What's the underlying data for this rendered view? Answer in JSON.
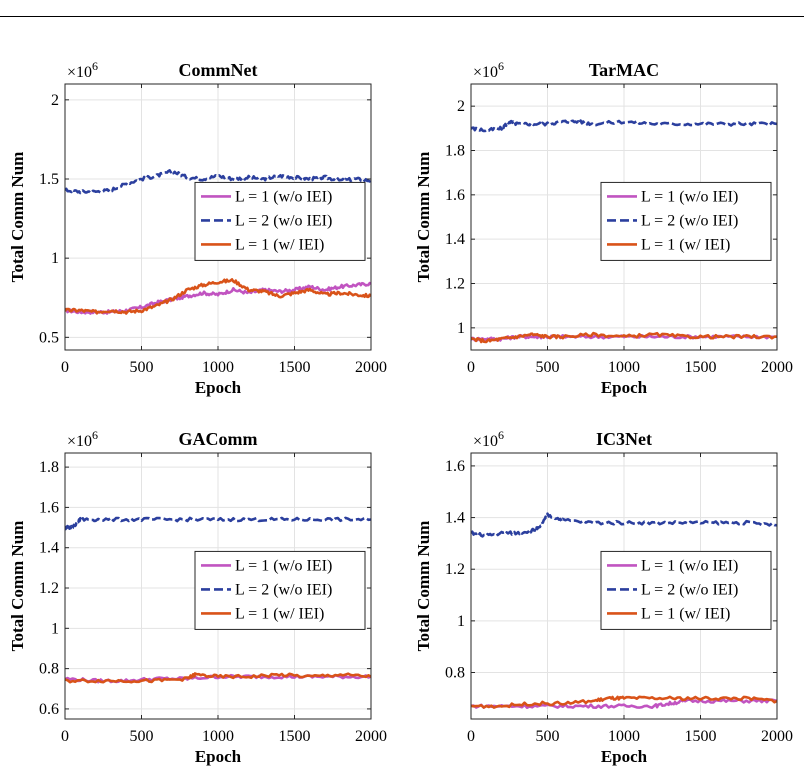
{
  "chart_data": [
    {
      "type": "line",
      "title": "CommNet",
      "xlabel": "Epoch",
      "ylabel": "Total Comm Num",
      "y_multiplier": "×10",
      "y_multiplier_exp": "6",
      "xlim": [
        0,
        2000
      ],
      "ylim": [
        0.42,
        2.1
      ],
      "xticks": [
        0,
        500,
        1000,
        1500,
        2000
      ],
      "yticks": [
        0.5,
        1,
        1.5,
        2
      ],
      "ytick_labels": [
        "0.5",
        "1",
        "1.5",
        "2"
      ],
      "grid": true,
      "legend_position": "right",
      "series": [
        {
          "name": "L = 1 (w/o IEI)",
          "color": "#c154c1",
          "dash": "solid",
          "x": [
            0,
            100,
            200,
            300,
            400,
            500,
            600,
            700,
            800,
            900,
            1000,
            1100,
            1200,
            1300,
            1400,
            1500,
            1600,
            1700,
            1800,
            1900,
            2000
          ],
          "y": [
            0.67,
            0.66,
            0.66,
            0.66,
            0.67,
            0.69,
            0.72,
            0.74,
            0.76,
            0.78,
            0.77,
            0.8,
            0.78,
            0.8,
            0.79,
            0.8,
            0.82,
            0.8,
            0.82,
            0.83,
            0.84
          ]
        },
        {
          "name": "L = 2 (w/o IEI)",
          "color": "#2b3f9e",
          "dash": "dashed",
          "x": [
            0,
            100,
            200,
            300,
            400,
            500,
            600,
            700,
            800,
            900,
            1000,
            1100,
            1200,
            1300,
            1400,
            1500,
            1600,
            1700,
            1800,
            1900,
            2000
          ],
          "y": [
            1.43,
            1.42,
            1.42,
            1.43,
            1.47,
            1.5,
            1.52,
            1.55,
            1.51,
            1.5,
            1.52,
            1.5,
            1.51,
            1.5,
            1.52,
            1.51,
            1.5,
            1.51,
            1.49,
            1.5,
            1.49
          ]
        },
        {
          "name": "L = 1 (w/ IEI)",
          "color": "#d95319",
          "dash": "solid",
          "x": [
            0,
            100,
            200,
            300,
            400,
            500,
            600,
            700,
            800,
            900,
            1000,
            1100,
            1200,
            1300,
            1400,
            1500,
            1600,
            1700,
            1800,
            1900,
            2000
          ],
          "y": [
            0.67,
            0.67,
            0.66,
            0.67,
            0.66,
            0.67,
            0.7,
            0.74,
            0.8,
            0.83,
            0.85,
            0.86,
            0.8,
            0.79,
            0.76,
            0.78,
            0.8,
            0.77,
            0.78,
            0.77,
            0.76
          ]
        }
      ]
    },
    {
      "type": "line",
      "title": "TarMAC",
      "xlabel": "Epoch",
      "ylabel": "Total Comm Num",
      "y_multiplier": "×10",
      "y_multiplier_exp": "6",
      "xlim": [
        0,
        2000
      ],
      "ylim": [
        0.9,
        2.1
      ],
      "xticks": [
        0,
        500,
        1000,
        1500,
        2000
      ],
      "yticks": [
        1,
        1.2,
        1.4,
        1.6,
        1.8,
        2
      ],
      "ytick_labels": [
        "1",
        "1.2",
        "1.4",
        "1.6",
        "1.8",
        "2"
      ],
      "grid": true,
      "legend_position": "right",
      "series": [
        {
          "name": "L = 1 (w/o IEI)",
          "color": "#c154c1",
          "dash": "solid",
          "x": [
            0,
            100,
            200,
            300,
            400,
            500,
            600,
            800,
            1000,
            1200,
            1400,
            1600,
            1800,
            2000
          ],
          "y": [
            0.95,
            0.95,
            0.95,
            0.96,
            0.96,
            0.96,
            0.96,
            0.96,
            0.96,
            0.96,
            0.96,
            0.96,
            0.96,
            0.96
          ]
        },
        {
          "name": "L = 2 (w/o IEI)",
          "color": "#2b3f9e",
          "dash": "dashed",
          "x": [
            0,
            100,
            200,
            250,
            300,
            400,
            500,
            600,
            700,
            800,
            1000,
            1200,
            1400,
            1600,
            1800,
            2000
          ],
          "y": [
            1.9,
            1.89,
            1.9,
            1.93,
            1.92,
            1.92,
            1.92,
            1.93,
            1.93,
            1.92,
            1.93,
            1.92,
            1.92,
            1.92,
            1.92,
            1.92
          ]
        },
        {
          "name": "L = 1 (w/ IEI)",
          "color": "#d95319",
          "dash": "solid",
          "x": [
            0,
            100,
            200,
            300,
            400,
            500,
            600,
            800,
            1000,
            1200,
            1400,
            1600,
            1800,
            2000
          ],
          "y": [
            0.95,
            0.94,
            0.95,
            0.96,
            0.97,
            0.96,
            0.96,
            0.97,
            0.96,
            0.97,
            0.96,
            0.96,
            0.96,
            0.96
          ]
        }
      ]
    },
    {
      "type": "line",
      "title": "GAComm",
      "xlabel": "Epoch",
      "ylabel": "Total Comm Num",
      "y_multiplier": "×10",
      "y_multiplier_exp": "6",
      "xlim": [
        0,
        2000
      ],
      "ylim": [
        0.55,
        1.87
      ],
      "xticks": [
        0,
        500,
        1000,
        1500,
        2000
      ],
      "yticks": [
        0.6,
        0.8,
        1,
        1.2,
        1.4,
        1.6,
        1.8
      ],
      "ytick_labels": [
        "0.6",
        "0.8",
        "1",
        "1.2",
        "1.4",
        "1.6",
        "1.8"
      ],
      "grid": true,
      "legend_position": "right",
      "series": [
        {
          "name": "L = 1 (w/o IEI)",
          "color": "#c154c1",
          "dash": "solid",
          "x": [
            0,
            200,
            400,
            600,
            800,
            1000,
            1200,
            1400,
            1600,
            1800,
            2000
          ],
          "y": [
            0.75,
            0.74,
            0.74,
            0.75,
            0.75,
            0.76,
            0.76,
            0.76,
            0.76,
            0.76,
            0.76
          ]
        },
        {
          "name": "L = 2 (w/o IEI)",
          "color": "#2b3f9e",
          "dash": "dashed",
          "x": [
            0,
            50,
            100,
            200,
            400,
            600,
            800,
            1000,
            1200,
            1400,
            1600,
            1800,
            2000
          ],
          "y": [
            1.5,
            1.5,
            1.54,
            1.54,
            1.54,
            1.54,
            1.54,
            1.54,
            1.54,
            1.54,
            1.54,
            1.54,
            1.54
          ]
        },
        {
          "name": "L = 1 (w/ IEI)",
          "color": "#d95319",
          "dash": "solid",
          "x": [
            0,
            200,
            400,
            600,
            800,
            850,
            1000,
            1200,
            1400,
            1600,
            1800,
            2000
          ],
          "y": [
            0.74,
            0.74,
            0.74,
            0.74,
            0.75,
            0.77,
            0.76,
            0.76,
            0.77,
            0.76,
            0.77,
            0.76
          ]
        }
      ]
    },
    {
      "type": "line",
      "title": "IC3Net",
      "xlabel": "Epoch",
      "ylabel": "Total Comm Num",
      "y_multiplier": "×10",
      "y_multiplier_exp": "6",
      "xlim": [
        0,
        2000
      ],
      "ylim": [
        0.62,
        1.65
      ],
      "xticks": [
        0,
        500,
        1000,
        1500,
        2000
      ],
      "yticks": [
        0.6,
        0.8,
        1,
        1.2,
        1.4,
        1.6
      ],
      "ytick_labels": [
        "0.6",
        "0.8",
        "1",
        "1.2",
        "1.4",
        "1.6"
      ],
      "grid": true,
      "legend_position": "right",
      "series": [
        {
          "name": "L = 1 (w/o IEI)",
          "color": "#c154c1",
          "dash": "solid",
          "x": [
            0,
            200,
            400,
            600,
            800,
            1000,
            1200,
            1300,
            1400,
            1600,
            1800,
            2000
          ],
          "y": [
            0.67,
            0.67,
            0.67,
            0.67,
            0.67,
            0.67,
            0.67,
            0.68,
            0.69,
            0.69,
            0.69,
            0.69
          ]
        },
        {
          "name": "L = 2 (w/o IEI)",
          "color": "#2b3f9e",
          "dash": "dashed",
          "x": [
            0,
            100,
            200,
            300,
            400,
            450,
            500,
            600,
            800,
            1000,
            1200,
            1400,
            1600,
            1800,
            2000
          ],
          "y": [
            1.34,
            1.33,
            1.34,
            1.34,
            1.35,
            1.36,
            1.41,
            1.39,
            1.38,
            1.38,
            1.38,
            1.38,
            1.38,
            1.38,
            1.37
          ]
        },
        {
          "name": "L = 1 (w/ IEI)",
          "color": "#d95319",
          "dash": "solid",
          "x": [
            0,
            200,
            400,
            600,
            800,
            900,
            1000,
            1200,
            1400,
            1600,
            1800,
            2000
          ],
          "y": [
            0.67,
            0.67,
            0.68,
            0.68,
            0.69,
            0.7,
            0.7,
            0.7,
            0.7,
            0.7,
            0.7,
            0.69
          ]
        }
      ]
    }
  ]
}
